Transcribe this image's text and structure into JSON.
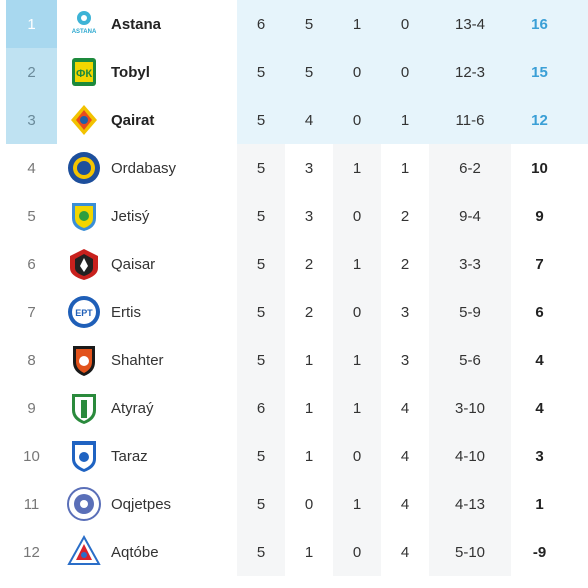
{
  "standings": [
    {
      "pos": "1",
      "team": "Astana",
      "p": "6",
      "w": "5",
      "d": "1",
      "l": "0",
      "goals": "13-4",
      "pts": "16",
      "logo": "astana-logo-icon"
    },
    {
      "pos": "2",
      "team": "Tobyl",
      "p": "5",
      "w": "5",
      "d": "0",
      "l": "0",
      "goals": "12-3",
      "pts": "15",
      "logo": "tobyl-logo-icon"
    },
    {
      "pos": "3",
      "team": "Qairat",
      "p": "5",
      "w": "4",
      "d": "0",
      "l": "1",
      "goals": "11-6",
      "pts": "12",
      "logo": "qairat-logo-icon"
    },
    {
      "pos": "4",
      "team": "Ordabasy",
      "p": "5",
      "w": "3",
      "d": "1",
      "l": "1",
      "goals": "6-2",
      "pts": "10",
      "logo": "ordabasy-logo-icon"
    },
    {
      "pos": "5",
      "team": "Jetisý",
      "p": "5",
      "w": "3",
      "d": "0",
      "l": "2",
      "goals": "9-4",
      "pts": "9",
      "logo": "jetisy-logo-icon"
    },
    {
      "pos": "6",
      "team": "Qaisar",
      "p": "5",
      "w": "2",
      "d": "1",
      "l": "2",
      "goals": "3-3",
      "pts": "7",
      "logo": "qaisar-logo-icon"
    },
    {
      "pos": "7",
      "team": "Ertis",
      "p": "5",
      "w": "2",
      "d": "0",
      "l": "3",
      "goals": "5-9",
      "pts": "6",
      "logo": "ertis-logo-icon"
    },
    {
      "pos": "8",
      "team": "Shahter",
      "p": "5",
      "w": "1",
      "d": "1",
      "l": "3",
      "goals": "5-6",
      "pts": "4",
      "logo": "shahter-logo-icon"
    },
    {
      "pos": "9",
      "team": "Atyraý",
      "p": "6",
      "w": "1",
      "d": "1",
      "l": "4",
      "goals": "3-10",
      "pts": "4",
      "logo": "atyrau-logo-icon"
    },
    {
      "pos": "10",
      "team": "Taraz",
      "p": "5",
      "w": "1",
      "d": "0",
      "l": "4",
      "goals": "4-10",
      "pts": "3",
      "logo": "taraz-logo-icon"
    },
    {
      "pos": "11",
      "team": "Oqjetpes",
      "p": "5",
      "w": "0",
      "d": "1",
      "l": "4",
      "goals": "4-13",
      "pts": "1",
      "logo": "oqjetpes-logo-icon"
    },
    {
      "pos": "12",
      "team": "Aqtóbe",
      "p": "5",
      "w": "1",
      "d": "0",
      "l": "4",
      "goals": "5-10",
      "pts": "-9",
      "logo": "aqtobe-logo-icon"
    }
  ],
  "colors": {
    "top_row_bg": "#e6f4fb",
    "first_pos_bg": "#a8d8ef",
    "top_pos_bg": "#bfe2f2",
    "zebra_bg": "#f5f6f7",
    "top_points": "#3a9fd6"
  }
}
